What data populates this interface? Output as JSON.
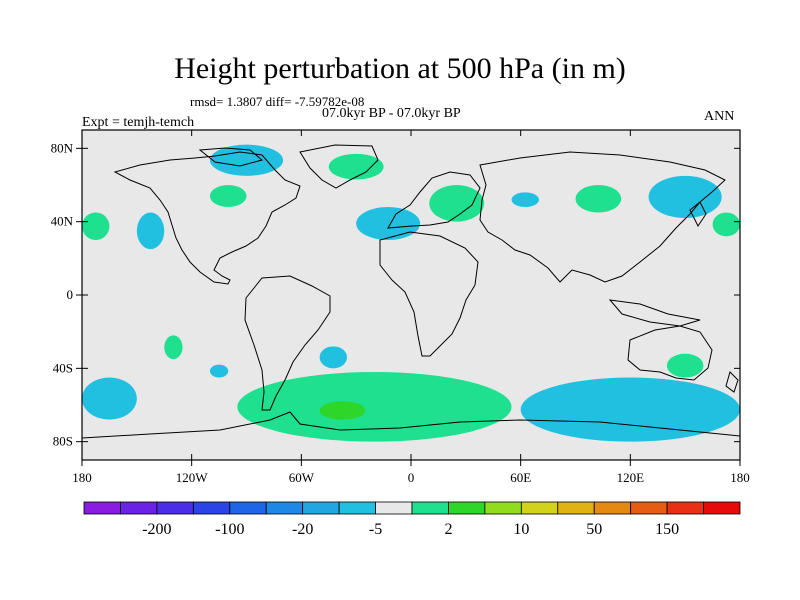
{
  "title": "Height perturbation at 500 hPa (in m)",
  "stats": "rmsd= 1.3807 diff= -7.59782e-08",
  "period": "07.0kyr BP - 07.0kyr BP",
  "expt": "Expt = temjh-temch",
  "season": "ANN",
  "y_axis": {
    "labels": [
      "80N",
      "40N",
      "0",
      "40S",
      "80S"
    ],
    "values": [
      80,
      40,
      0,
      -40,
      -80
    ]
  },
  "x_axis": {
    "labels": [
      "180",
      "120W",
      "60W",
      "0",
      "60E",
      "120E",
      "180"
    ],
    "values": [
      -180,
      -120,
      -60,
      0,
      60,
      120,
      180
    ]
  },
  "colorbar": {
    "colors": [
      "#8a1be0",
      "#6a22e6",
      "#4a2ee8",
      "#2a44e6",
      "#1e66e6",
      "#1e88e6",
      "#22a6e2",
      "#22c0e0",
      "#e8e8e8",
      "#1ee08e",
      "#2ed62a",
      "#92dc1e",
      "#d2d21a",
      "#e0b214",
      "#e48a12",
      "#e65c12",
      "#e83014",
      "#e60a0a"
    ],
    "labels": [
      "-200",
      "-100",
      "-20",
      "-5",
      "2",
      "10",
      "50",
      "150"
    ],
    "label_after_box": [
      1,
      3,
      5,
      7,
      9,
      11,
      13,
      15
    ]
  },
  "field_colors": {
    "ocean_bg": "#e8e8e8",
    "positive": "#1ee08e",
    "positive_strong": "#2ed62a",
    "negative": "#22c0e0"
  },
  "anomalies": [
    {
      "sign": "negative",
      "lon": [
        -110,
        -70
      ],
      "lat": [
        65,
        82
      ]
    },
    {
      "sign": "positive",
      "lon": [
        -45,
        -15
      ],
      "lat": [
        63,
        77
      ]
    },
    {
      "sign": "positive",
      "lon": [
        -110,
        -90
      ],
      "lat": [
        48,
        60
      ]
    },
    {
      "sign": "positive",
      "lon": [
        -180,
        -165
      ],
      "lat": [
        30,
        45
      ]
    },
    {
      "sign": "negative",
      "lon": [
        -150,
        -135
      ],
      "lat": [
        25,
        45
      ]
    },
    {
      "sign": "negative",
      "lon": [
        -30,
        5
      ],
      "lat": [
        30,
        48
      ]
    },
    {
      "sign": "positive",
      "lon": [
        10,
        40
      ],
      "lat": [
        40,
        60
      ]
    },
    {
      "sign": "negative",
      "lon": [
        55,
        70
      ],
      "lat": [
        48,
        56
      ]
    },
    {
      "sign": "positive",
      "lon": [
        90,
        115
      ],
      "lat": [
        45,
        60
      ]
    },
    {
      "sign": "negative",
      "lon": [
        130,
        170
      ],
      "lat": [
        42,
        65
      ]
    },
    {
      "sign": "positive",
      "lon": [
        165,
        180
      ],
      "lat": [
        32,
        45
      ]
    },
    {
      "sign": "positive",
      "lon": [
        -135,
        -125
      ],
      "lat": [
        -35,
        -22
      ]
    },
    {
      "sign": "negative",
      "lon": [
        -110,
        -100
      ],
      "lat": [
        -45,
        -38
      ]
    },
    {
      "sign": "negative",
      "lon": [
        -50,
        -35
      ],
      "lat": [
        -40,
        -28
      ]
    },
    {
      "sign": "negative",
      "lon": [
        -180,
        -150
      ],
      "lat": [
        -68,
        -45
      ]
    },
    {
      "sign": "positive",
      "lon": [
        -95,
        55
      ],
      "lat": [
        -80,
        -42
      ]
    },
    {
      "sign": "positive_strong",
      "lon": [
        -50,
        -25
      ],
      "lat": [
        -68,
        -58
      ]
    },
    {
      "sign": "negative",
      "lon": [
        60,
        180
      ],
      "lat": [
        -80,
        -45
      ]
    },
    {
      "sign": "positive",
      "lon": [
        140,
        160
      ],
      "lat": [
        -45,
        -32
      ]
    }
  ]
}
